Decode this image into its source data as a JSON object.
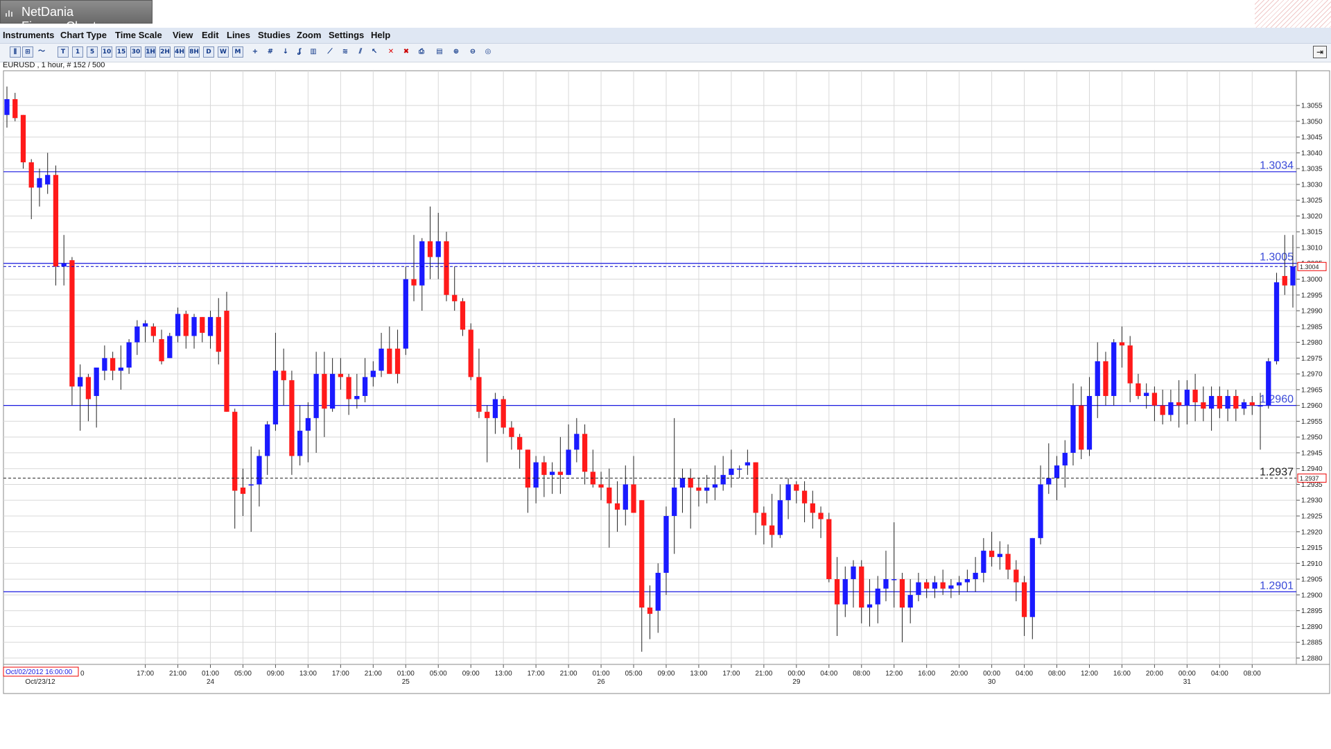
{
  "window": {
    "title": "NetDania FinanceChart"
  },
  "menu": [
    {
      "label": "Instruments"
    },
    {
      "label": "Chart Type"
    },
    {
      "label": "Time Scale"
    },
    {
      "label": "View"
    },
    {
      "label": "Edit"
    },
    {
      "label": "Lines"
    },
    {
      "label": "Studies"
    },
    {
      "label": "Zoom"
    },
    {
      "label": "Settings"
    },
    {
      "label": "Help"
    }
  ],
  "toolbar": {
    "timescale_buttons": [
      {
        "label": "T"
      },
      {
        "label": "1"
      },
      {
        "label": "5"
      },
      {
        "label": "10"
      },
      {
        "label": "15"
      },
      {
        "label": "30"
      },
      {
        "label": "1H"
      },
      {
        "label": "2H"
      },
      {
        "label": "4H"
      },
      {
        "label": "8H"
      },
      {
        "label": "D"
      },
      {
        "label": "W"
      },
      {
        "label": "M"
      }
    ],
    "active_timescale": "1H",
    "icons": [
      "bar-chart-icon",
      "candlestick-icon",
      "line-chart-icon",
      "crosshair-icon",
      "grid-icon",
      "arrow-down-icon",
      "study-icon",
      "volume-icon",
      "trendline-icon",
      "fibonacci-icon",
      "channel-icon",
      "select-line-icon",
      "delete-line-icon",
      "delete-all-icon",
      "print-icon",
      "print-preview-icon",
      "zoom-in-icon",
      "zoom-out-icon",
      "zoom-reset-icon"
    ]
  },
  "instrument_label": "EURUSD , 1 hour, # 152 / 500",
  "chart_data": {
    "type": "candlestick",
    "symbol": "EURUSD",
    "interval": "1 hour",
    "ylim": [
      1.2878,
      1.3066
    ],
    "y_ticks": [
      "1.3055",
      "1.3050",
      "1.3045",
      "1.3040",
      "1.3035",
      "1.3030",
      "1.3025",
      "1.3020",
      "1.3015",
      "1.3010",
      "1.3005",
      "1.3000",
      "1.2995",
      "1.2990",
      "1.2985",
      "1.2980",
      "1.2975",
      "1.2970",
      "1.2965",
      "1.2960",
      "1.2955",
      "1.2950",
      "1.2945",
      "1.2940",
      "1.2935",
      "1.2930",
      "1.2925",
      "1.2920",
      "1.2915",
      "1.2910",
      "1.2905",
      "1.2900",
      "1.2895",
      "1.2890",
      "1.2885",
      "1.2880"
    ],
    "x_time_labels": [
      "17:00",
      "21:00",
      "01:00",
      "05:00",
      "09:00",
      "13:00",
      "17:00",
      "21:00",
      "01:00",
      "05:00",
      "09:00",
      "13:00",
      "17:00",
      "21:00",
      "01:00",
      "05:00",
      "09:00",
      "13:00",
      "17:00",
      "21:00",
      "00:00",
      "04:00",
      "08:00",
      "12:00",
      "16:00",
      "20:00",
      "00:00",
      "04:00",
      "08:00",
      "12:00",
      "16:00",
      "20:00",
      "00:00",
      "04:00",
      "08:00"
    ],
    "x_date_labels": [
      "Oct/23/12",
      "24",
      "25",
      "26",
      "29",
      "30",
      "31"
    ],
    "cursor_time_label": "Oct/02/2012 16:00:00",
    "cursor_partial": "0",
    "horizontal_lines": [
      {
        "value": 1.3034,
        "label": "1.3034",
        "style": "solid"
      },
      {
        "value": 1.3005,
        "label": "1.3005",
        "style": "solid"
      },
      {
        "value": 1.296,
        "label": "1.2960",
        "style": "solid"
      },
      {
        "value": 1.2901,
        "label": "1.2901",
        "style": "solid"
      }
    ],
    "price_markers": [
      {
        "value": 1.3004,
        "label": "1.3004",
        "style": "dashed",
        "color": "#0000cc"
      },
      {
        "value": 1.2937,
        "label": "1.2937",
        "style": "dashed",
        "color": "#222222"
      }
    ],
    "extra_label": {
      "value": 1.2937,
      "label": "1.2937"
    },
    "up_color": "#1a1aff",
    "down_color": "#ff1a1a",
    "candles": [
      {
        "o": 1.3052,
        "h": 1.3061,
        "l": 1.3048,
        "c": 1.3057
      },
      {
        "o": 1.3057,
        "h": 1.3059,
        "l": 1.305,
        "c": 1.3051
      },
      {
        "o": 1.3052,
        "h": 1.3052,
        "l": 1.3035,
        "c": 1.3037
      },
      {
        "o": 1.3037,
        "h": 1.3038,
        "l": 1.3019,
        "c": 1.3029
      },
      {
        "o": 1.3029,
        "h": 1.3035,
        "l": 1.3023,
        "c": 1.3032
      },
      {
        "o": 1.303,
        "h": 1.304,
        "l": 1.3027,
        "c": 1.3033
      },
      {
        "o": 1.3033,
        "h": 1.3036,
        "l": 1.2998,
        "c": 1.3004
      },
      {
        "o": 1.3004,
        "h": 1.3014,
        "l": 1.2998,
        "c": 1.3005
      },
      {
        "o": 1.3006,
        "h": 1.3007,
        "l": 1.296,
        "c": 1.2966
      },
      {
        "o": 1.2966,
        "h": 1.2973,
        "l": 1.2952,
        "c": 1.2969
      },
      {
        "o": 1.2969,
        "h": 1.297,
        "l": 1.2955,
        "c": 1.2962
      },
      {
        "o": 1.2963,
        "h": 1.2972,
        "l": 1.2953,
        "c": 1.2972
      },
      {
        "o": 1.2971,
        "h": 1.2979,
        "l": 1.2968,
        "c": 1.2975
      },
      {
        "o": 1.2975,
        "h": 1.2977,
        "l": 1.2968,
        "c": 1.2971
      },
      {
        "o": 1.2971,
        "h": 1.2979,
        "l": 1.2965,
        "c": 1.2972
      },
      {
        "o": 1.2972,
        "h": 1.2981,
        "l": 1.297,
        "c": 1.298
      },
      {
        "o": 1.298,
        "h": 1.2987,
        "l": 1.2976,
        "c": 1.2985
      },
      {
        "o": 1.2985,
        "h": 1.2987,
        "l": 1.298,
        "c": 1.2986
      },
      {
        "o": 1.2985,
        "h": 1.2986,
        "l": 1.298,
        "c": 1.2982
      },
      {
        "o": 1.2981,
        "h": 1.2984,
        "l": 1.2973,
        "c": 1.2974
      },
      {
        "o": 1.2975,
        "h": 1.2983,
        "l": 1.2975,
        "c": 1.2982
      },
      {
        "o": 1.2982,
        "h": 1.2991,
        "l": 1.298,
        "c": 1.2989
      },
      {
        "o": 1.2989,
        "h": 1.299,
        "l": 1.2978,
        "c": 1.2982
      },
      {
        "o": 1.2982,
        "h": 1.2989,
        "l": 1.2978,
        "c": 1.2988
      },
      {
        "o": 1.2988,
        "h": 1.2988,
        "l": 1.298,
        "c": 1.2983
      },
      {
        "o": 1.2982,
        "h": 1.299,
        "l": 1.2978,
        "c": 1.2988
      },
      {
        "o": 1.2988,
        "h": 1.2994,
        "l": 1.2973,
        "c": 1.2977
      },
      {
        "o": 1.299,
        "h": 1.2996,
        "l": 1.2958,
        "c": 1.2958
      },
      {
        "o": 1.2958,
        "h": 1.2959,
        "l": 1.2921,
        "c": 1.2933
      },
      {
        "o": 1.2934,
        "h": 1.294,
        "l": 1.2925,
        "c": 1.2932
      },
      {
        "o": 1.2935,
        "h": 1.2947,
        "l": 1.292,
        "c": 1.2935
      },
      {
        "o": 1.2935,
        "h": 1.2946,
        "l": 1.2928,
        "c": 1.2944
      },
      {
        "o": 1.2944,
        "h": 1.2955,
        "l": 1.2938,
        "c": 1.2954
      },
      {
        "o": 1.2954,
        "h": 1.2983,
        "l": 1.2952,
        "c": 1.2971
      },
      {
        "o": 1.2971,
        "h": 1.2978,
        "l": 1.296,
        "c": 1.2968
      },
      {
        "o": 1.2968,
        "h": 1.2971,
        "l": 1.2938,
        "c": 1.2944
      },
      {
        "o": 1.2944,
        "h": 1.296,
        "l": 1.2941,
        "c": 1.2952
      },
      {
        "o": 1.2952,
        "h": 1.2961,
        "l": 1.2942,
        "c": 1.2956
      },
      {
        "o": 1.2956,
        "h": 1.2977,
        "l": 1.2945,
        "c": 1.297
      },
      {
        "o": 1.297,
        "h": 1.2977,
        "l": 1.295,
        "c": 1.2959
      },
      {
        "o": 1.2959,
        "h": 1.2975,
        "l": 1.2958,
        "c": 1.297
      },
      {
        "o": 1.297,
        "h": 1.2975,
        "l": 1.2965,
        "c": 1.2969
      },
      {
        "o": 1.2969,
        "h": 1.297,
        "l": 1.2957,
        "c": 1.2962
      },
      {
        "o": 1.2962,
        "h": 1.297,
        "l": 1.2959,
        "c": 1.2963
      },
      {
        "o": 1.2963,
        "h": 1.2975,
        "l": 1.2961,
        "c": 1.2969
      },
      {
        "o": 1.2969,
        "h": 1.2974,
        "l": 1.2966,
        "c": 1.2971
      },
      {
        "o": 1.2971,
        "h": 1.2983,
        "l": 1.2969,
        "c": 1.2978
      },
      {
        "o": 1.2978,
        "h": 1.2985,
        "l": 1.297,
        "c": 1.297
      },
      {
        "o": 1.2978,
        "h": 1.2984,
        "l": 1.2967,
        "c": 1.297
      },
      {
        "o": 1.2978,
        "h": 1.3004,
        "l": 1.2976,
        "c": 1.3
      },
      {
        "o": 1.3,
        "h": 1.3014,
        "l": 1.2993,
        "c": 1.2998
      },
      {
        "o": 1.2998,
        "h": 1.3013,
        "l": 1.299,
        "c": 1.3012
      },
      {
        "o": 1.3012,
        "h": 1.3023,
        "l": 1.3,
        "c": 1.3007
      },
      {
        "o": 1.3007,
        "h": 1.3021,
        "l": 1.3,
        "c": 1.3012
      },
      {
        "o": 1.3012,
        "h": 1.3015,
        "l": 1.2993,
        "c": 1.2995
      },
      {
        "o": 1.2995,
        "h": 1.3004,
        "l": 1.299,
        "c": 1.2993
      },
      {
        "o": 1.2993,
        "h": 1.2994,
        "l": 1.2982,
        "c": 1.2984
      },
      {
        "o": 1.2984,
        "h": 1.2986,
        "l": 1.2968,
        "c": 1.2969
      },
      {
        "o": 1.2969,
        "h": 1.2978,
        "l": 1.2956,
        "c": 1.2958
      },
      {
        "o": 1.2958,
        "h": 1.296,
        "l": 1.2942,
        "c": 1.2956
      },
      {
        "o": 1.2956,
        "h": 1.2964,
        "l": 1.2951,
        "c": 1.2962
      },
      {
        "o": 1.2962,
        "h": 1.2963,
        "l": 1.2951,
        "c": 1.2953
      },
      {
        "o": 1.2953,
        "h": 1.2955,
        "l": 1.2946,
        "c": 1.295
      },
      {
        "o": 1.295,
        "h": 1.2951,
        "l": 1.294,
        "c": 1.2946
      },
      {
        "o": 1.2946,
        "h": 1.2946,
        "l": 1.2926,
        "c": 1.2934
      },
      {
        "o": 1.2934,
        "h": 1.2944,
        "l": 1.2929,
        "c": 1.2942
      },
      {
        "o": 1.2942,
        "h": 1.2944,
        "l": 1.2931,
        "c": 1.2938
      },
      {
        "o": 1.2938,
        "h": 1.2942,
        "l": 1.2932,
        "c": 1.2939
      },
      {
        "o": 1.2939,
        "h": 1.295,
        "l": 1.2932,
        "c": 1.2938
      },
      {
        "o": 1.2938,
        "h": 1.2954,
        "l": 1.2938,
        "c": 1.2946
      },
      {
        "o": 1.2946,
        "h": 1.2956,
        "l": 1.2942,
        "c": 1.2951
      },
      {
        "o": 1.2951,
        "h": 1.2954,
        "l": 1.2935,
        "c": 1.2939
      },
      {
        "o": 1.2939,
        "h": 1.2946,
        "l": 1.2934,
        "c": 1.2935
      },
      {
        "o": 1.2935,
        "h": 1.2939,
        "l": 1.293,
        "c": 1.2934
      },
      {
        "o": 1.2934,
        "h": 1.294,
        "l": 1.2915,
        "c": 1.2929
      },
      {
        "o": 1.2929,
        "h": 1.2936,
        "l": 1.292,
        "c": 1.2927
      },
      {
        "o": 1.2927,
        "h": 1.2941,
        "l": 1.2922,
        "c": 1.2935
      },
      {
        "o": 1.2935,
        "h": 1.2944,
        "l": 1.2926,
        "c": 1.2926
      },
      {
        "o": 1.293,
        "h": 1.293,
        "l": 1.2882,
        "c": 1.2896
      },
      {
        "o": 1.2896,
        "h": 1.2903,
        "l": 1.2886,
        "c": 1.2894
      },
      {
        "o": 1.2895,
        "h": 1.291,
        "l": 1.2888,
        "c": 1.2907
      },
      {
        "o": 1.2907,
        "h": 1.2928,
        "l": 1.29,
        "c": 1.2925
      },
      {
        "o": 1.2925,
        "h": 1.2956,
        "l": 1.2913,
        "c": 1.2934
      },
      {
        "o": 1.2934,
        "h": 1.294,
        "l": 1.2926,
        "c": 1.2937
      },
      {
        "o": 1.2937,
        "h": 1.294,
        "l": 1.2921,
        "c": 1.2934
      },
      {
        "o": 1.2934,
        "h": 1.2937,
        "l": 1.2928,
        "c": 1.2933
      },
      {
        "o": 1.2933,
        "h": 1.2938,
        "l": 1.2929,
        "c": 1.2934
      },
      {
        "o": 1.2934,
        "h": 1.2941,
        "l": 1.293,
        "c": 1.2935
      },
      {
        "o": 1.2935,
        "h": 1.2944,
        "l": 1.2933,
        "c": 1.2938
      },
      {
        "o": 1.2938,
        "h": 1.2946,
        "l": 1.2934,
        "c": 1.294
      },
      {
        "o": 1.294,
        "h": 1.2941,
        "l": 1.2937,
        "c": 1.294
      },
      {
        "o": 1.2941,
        "h": 1.2946,
        "l": 1.2938,
        "c": 1.2942
      },
      {
        "o": 1.2942,
        "h": 1.2942,
        "l": 1.2919,
        "c": 1.2926
      },
      {
        "o": 1.2926,
        "h": 1.2928,
        "l": 1.2916,
        "c": 1.2922
      },
      {
        "o": 1.2922,
        "h": 1.2932,
        "l": 1.2915,
        "c": 1.2919
      },
      {
        "o": 1.2919,
        "h": 1.2935,
        "l": 1.2918,
        "c": 1.293
      },
      {
        "o": 1.293,
        "h": 1.2937,
        "l": 1.2924,
        "c": 1.2935
      },
      {
        "o": 1.2935,
        "h": 1.2936,
        "l": 1.2929,
        "c": 1.2933
      },
      {
        "o": 1.2933,
        "h": 1.2936,
        "l": 1.2923,
        "c": 1.2929
      },
      {
        "o": 1.2929,
        "h": 1.2933,
        "l": 1.2921,
        "c": 1.2926
      },
      {
        "o": 1.2926,
        "h": 1.2928,
        "l": 1.2918,
        "c": 1.2924
      },
      {
        "o": 1.2924,
        "h": 1.2926,
        "l": 1.2904,
        "c": 1.2905
      },
      {
        "o": 1.2905,
        "h": 1.2912,
        "l": 1.2887,
        "c": 1.2897
      },
      {
        "o": 1.2897,
        "h": 1.2909,
        "l": 1.2893,
        "c": 1.2905
      },
      {
        "o": 1.2905,
        "h": 1.2911,
        "l": 1.2896,
        "c": 1.2909
      },
      {
        "o": 1.2909,
        "h": 1.2911,
        "l": 1.2891,
        "c": 1.2896
      },
      {
        "o": 1.2896,
        "h": 1.2905,
        "l": 1.289,
        "c": 1.2897
      },
      {
        "o": 1.2897,
        "h": 1.2906,
        "l": 1.2891,
        "c": 1.2902
      },
      {
        "o": 1.2902,
        "h": 1.2914,
        "l": 1.2898,
        "c": 1.2905
      },
      {
        "o": 1.2905,
        "h": 1.2923,
        "l": 1.2896,
        "c": 1.2905
      },
      {
        "o": 1.2905,
        "h": 1.2907,
        "l": 1.2885,
        "c": 1.2896
      },
      {
        "o": 1.2896,
        "h": 1.2905,
        "l": 1.2891,
        "c": 1.29
      },
      {
        "o": 1.29,
        "h": 1.2907,
        "l": 1.2898,
        "c": 1.2904
      },
      {
        "o": 1.2904,
        "h": 1.2905,
        "l": 1.2899,
        "c": 1.2902
      },
      {
        "o": 1.2902,
        "h": 1.2906,
        "l": 1.2899,
        "c": 1.2904
      },
      {
        "o": 1.2904,
        "h": 1.2908,
        "l": 1.29,
        "c": 1.2902
      },
      {
        "o": 1.2902,
        "h": 1.2905,
        "l": 1.2899,
        "c": 1.2903
      },
      {
        "o": 1.2903,
        "h": 1.2906,
        "l": 1.29,
        "c": 1.2904
      },
      {
        "o": 1.2904,
        "h": 1.2908,
        "l": 1.2901,
        "c": 1.2905
      },
      {
        "o": 1.2905,
        "h": 1.2912,
        "l": 1.2901,
        "c": 1.2907
      },
      {
        "o": 1.2907,
        "h": 1.2918,
        "l": 1.2904,
        "c": 1.2914
      },
      {
        "o": 1.2914,
        "h": 1.292,
        "l": 1.2909,
        "c": 1.2912
      },
      {
        "o": 1.2912,
        "h": 1.2917,
        "l": 1.2908,
        "c": 1.2913
      },
      {
        "o": 1.2913,
        "h": 1.2916,
        "l": 1.2905,
        "c": 1.2908
      },
      {
        "o": 1.2908,
        "h": 1.2911,
        "l": 1.2898,
        "c": 1.2904
      },
      {
        "o": 1.2904,
        "h": 1.2906,
        "l": 1.2887,
        "c": 1.2893
      },
      {
        "o": 1.2893,
        "h": 1.2918,
        "l": 1.2886,
        "c": 1.2918
      },
      {
        "o": 1.2918,
        "h": 1.2941,
        "l": 1.2916,
        "c": 1.2935
      },
      {
        "o": 1.2935,
        "h": 1.2948,
        "l": 1.2932,
        "c": 1.2937
      },
      {
        "o": 1.2937,
        "h": 1.2944,
        "l": 1.293,
        "c": 1.2941
      },
      {
        "o": 1.2941,
        "h": 1.2949,
        "l": 1.2934,
        "c": 1.2945
      },
      {
        "o": 1.2945,
        "h": 1.2967,
        "l": 1.2941,
        "c": 1.296
      },
      {
        "o": 1.296,
        "h": 1.2966,
        "l": 1.2943,
        "c": 1.2946
      },
      {
        "o": 1.2946,
        "h": 1.2969,
        "l": 1.2944,
        "c": 1.2963
      },
      {
        "o": 1.2963,
        "h": 1.298,
        "l": 1.2956,
        "c": 1.2974
      },
      {
        "o": 1.2974,
        "h": 1.2977,
        "l": 1.296,
        "c": 1.2963
      },
      {
        "o": 1.2963,
        "h": 1.2981,
        "l": 1.296,
        "c": 1.298
      },
      {
        "o": 1.298,
        "h": 1.2985,
        "l": 1.2972,
        "c": 1.2979
      },
      {
        "o": 1.2979,
        "h": 1.2982,
        "l": 1.2961,
        "c": 1.2967
      },
      {
        "o": 1.2967,
        "h": 1.297,
        "l": 1.2962,
        "c": 1.2963
      },
      {
        "o": 1.2963,
        "h": 1.2967,
        "l": 1.2959,
        "c": 1.2964
      },
      {
        "o": 1.2964,
        "h": 1.2966,
        "l": 1.2955,
        "c": 1.296
      },
      {
        "o": 1.296,
        "h": 1.2965,
        "l": 1.2954,
        "c": 1.2957
      },
      {
        "o": 1.2957,
        "h": 1.2965,
        "l": 1.2955,
        "c": 1.2961
      },
      {
        "o": 1.2961,
        "h": 1.2968,
        "l": 1.2953,
        "c": 1.296
      },
      {
        "o": 1.296,
        "h": 1.2968,
        "l": 1.2954,
        "c": 1.2965
      },
      {
        "o": 1.2965,
        "h": 1.297,
        "l": 1.2955,
        "c": 1.2961
      },
      {
        "o": 1.2961,
        "h": 1.2966,
        "l": 1.2955,
        "c": 1.2959
      },
      {
        "o": 1.2959,
        "h": 1.2966,
        "l": 1.2952,
        "c": 1.2963
      },
      {
        "o": 1.2963,
        "h": 1.2966,
        "l": 1.2956,
        "c": 1.2959
      },
      {
        "o": 1.2959,
        "h": 1.2965,
        "l": 1.2955,
        "c": 1.2963
      },
      {
        "o": 1.2963,
        "h": 1.2965,
        "l": 1.2955,
        "c": 1.2959
      },
      {
        "o": 1.2959,
        "h": 1.2962,
        "l": 1.2957,
        "c": 1.2961
      },
      {
        "o": 1.2961,
        "h": 1.2963,
        "l": 1.2957,
        "c": 1.296
      },
      {
        "o": 1.296,
        "h": 1.2964,
        "l": 1.2946,
        "c": 1.296
      },
      {
        "o": 1.296,
        "h": 1.2975,
        "l": 1.2959,
        "c": 1.2974
      },
      {
        "o": 1.2974,
        "h": 1.3002,
        "l": 1.2973,
        "c": 1.2999
      },
      {
        "o": 1.3001,
        "h": 1.3014,
        "l": 1.2995,
        "c": 1.2998
      },
      {
        "o": 1.2998,
        "h": 1.3014,
        "l": 1.2991,
        "c": 1.3004
      }
    ]
  }
}
